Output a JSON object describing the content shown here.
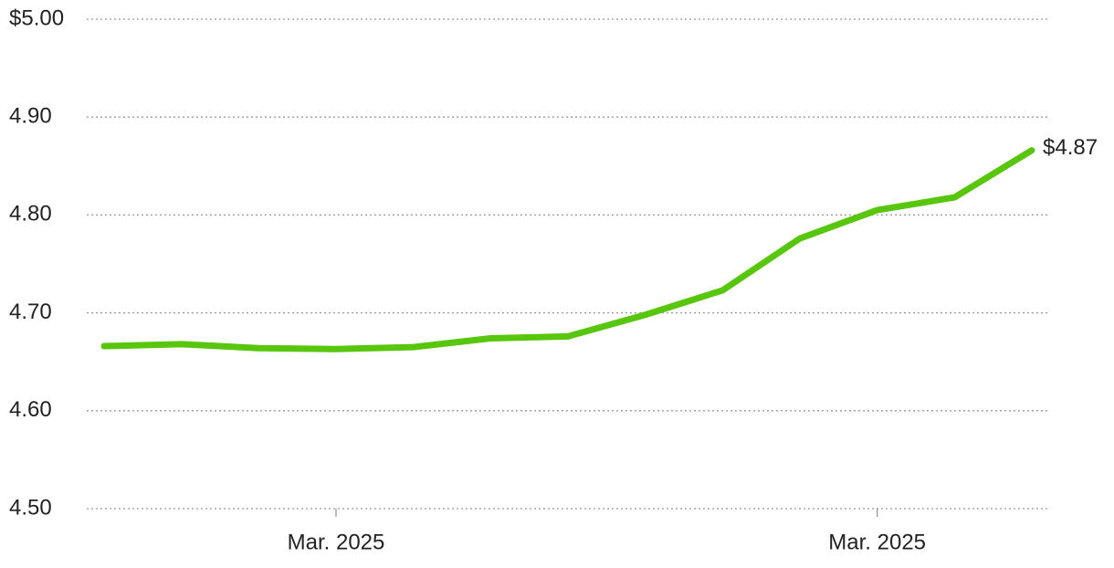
{
  "chart_data": {
    "type": "line",
    "categories": [
      null,
      null,
      null,
      "Mar. 2025",
      null,
      null,
      null,
      null,
      null,
      null,
      "Mar. 2025",
      null,
      null
    ],
    "series": [
      {
        "color": "#57c60c",
        "values": [
          4.666,
          4.668,
          4.664,
          4.663,
          4.665,
          4.674,
          4.676,
          4.698,
          4.723,
          4.776,
          4.805,
          4.818,
          4.866
        ],
        "value_labels": [
          null,
          null,
          null,
          null,
          null,
          null,
          null,
          null,
          null,
          null,
          null,
          null,
          "$4.87"
        ]
      }
    ],
    "ylim": [
      4.5,
      5.0
    ],
    "yticks": [
      {
        "value": 4.5,
        "label": "4.50"
      },
      {
        "value": 4.6,
        "label": "4.60"
      },
      {
        "value": 4.7,
        "label": "4.70"
      },
      {
        "value": 4.8,
        "label": "4.80"
      },
      {
        "value": 4.9,
        "label": "4.90"
      },
      {
        "value": 5.0,
        "label": "$5.00"
      }
    ],
    "grid": true
  }
}
